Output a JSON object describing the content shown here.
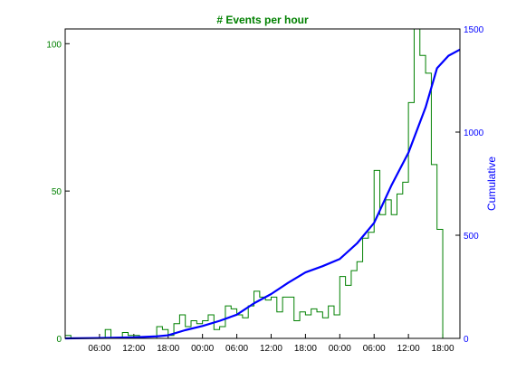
{
  "chart_data": {
    "type": "step_histogram_with_cumulative_line",
    "title": "# Events per hour",
    "xlabel": "",
    "ylabel_left": "",
    "ylabel_right": "Cumulative",
    "x_tick_labels": [
      "06:00",
      "12:00",
      "18:00",
      "00:00",
      "06:00",
      "12:00",
      "18:00",
      "00:00",
      "06:00",
      "12:00",
      "18:00"
    ],
    "x_tick_hours": [
      6,
      12,
      18,
      24,
      30,
      36,
      42,
      48,
      54,
      60,
      66
    ],
    "xlim_hours": [
      0,
      69
    ],
    "ylim_left": [
      0,
      105
    ],
    "y_ticks_left": [
      0,
      50,
      100
    ],
    "ylim_right": [
      0,
      1500
    ],
    "y_ticks_right": [
      0,
      500,
      1000,
      1500
    ],
    "grid": false,
    "colors": {
      "histogram": "#008000",
      "cumulative": "#0000ff",
      "left_axis": "#008000",
      "right_axis": "#0000ff"
    },
    "series": [
      {
        "name": "Events per hour",
        "axis": "left",
        "style": "step",
        "x_hours": [
          0,
          1,
          2,
          3,
          4,
          5,
          6,
          7,
          8,
          9,
          10,
          11,
          12,
          13,
          14,
          15,
          16,
          17,
          18,
          19,
          20,
          21,
          22,
          23,
          24,
          25,
          26,
          27,
          28,
          29,
          30,
          31,
          32,
          33,
          34,
          35,
          36,
          37,
          38,
          39,
          40,
          41,
          42,
          43,
          44,
          45,
          46,
          47,
          48,
          49,
          50,
          51,
          52,
          53,
          54,
          55,
          56,
          57,
          58,
          59,
          60,
          61,
          62,
          63,
          64,
          65,
          66,
          67,
          68
        ],
        "values": [
          1,
          0,
          0,
          0,
          0,
          0,
          0,
          3,
          0,
          0,
          2,
          1,
          1,
          0,
          0,
          0,
          4,
          3,
          1,
          5,
          8,
          4,
          6,
          5,
          6,
          8,
          3,
          4,
          11,
          10,
          8,
          7,
          11,
          16,
          14,
          13,
          14,
          9,
          14,
          14,
          6,
          9,
          8,
          10,
          9,
          7,
          11,
          8,
          21,
          18,
          23,
          26,
          34,
          36,
          57,
          42,
          47,
          42,
          49,
          53,
          80,
          105,
          96,
          90,
          59,
          37,
          0,
          0,
          0
        ],
        "last_edge_hour": 69
      },
      {
        "name": "Cumulative",
        "axis": "right",
        "style": "line",
        "x_hours": [
          0,
          6,
          12,
          16,
          18,
          21,
          24,
          27,
          30,
          33,
          36,
          39,
          42,
          45,
          48,
          51,
          54,
          57,
          60,
          63,
          65,
          67,
          69
        ],
        "values": [
          0,
          2,
          5,
          10,
          15,
          40,
          60,
          85,
          115,
          170,
          215,
          270,
          320,
          350,
          385,
          460,
          560,
          740,
          900,
          1120,
          1310,
          1370,
          1400
        ]
      }
    ]
  }
}
